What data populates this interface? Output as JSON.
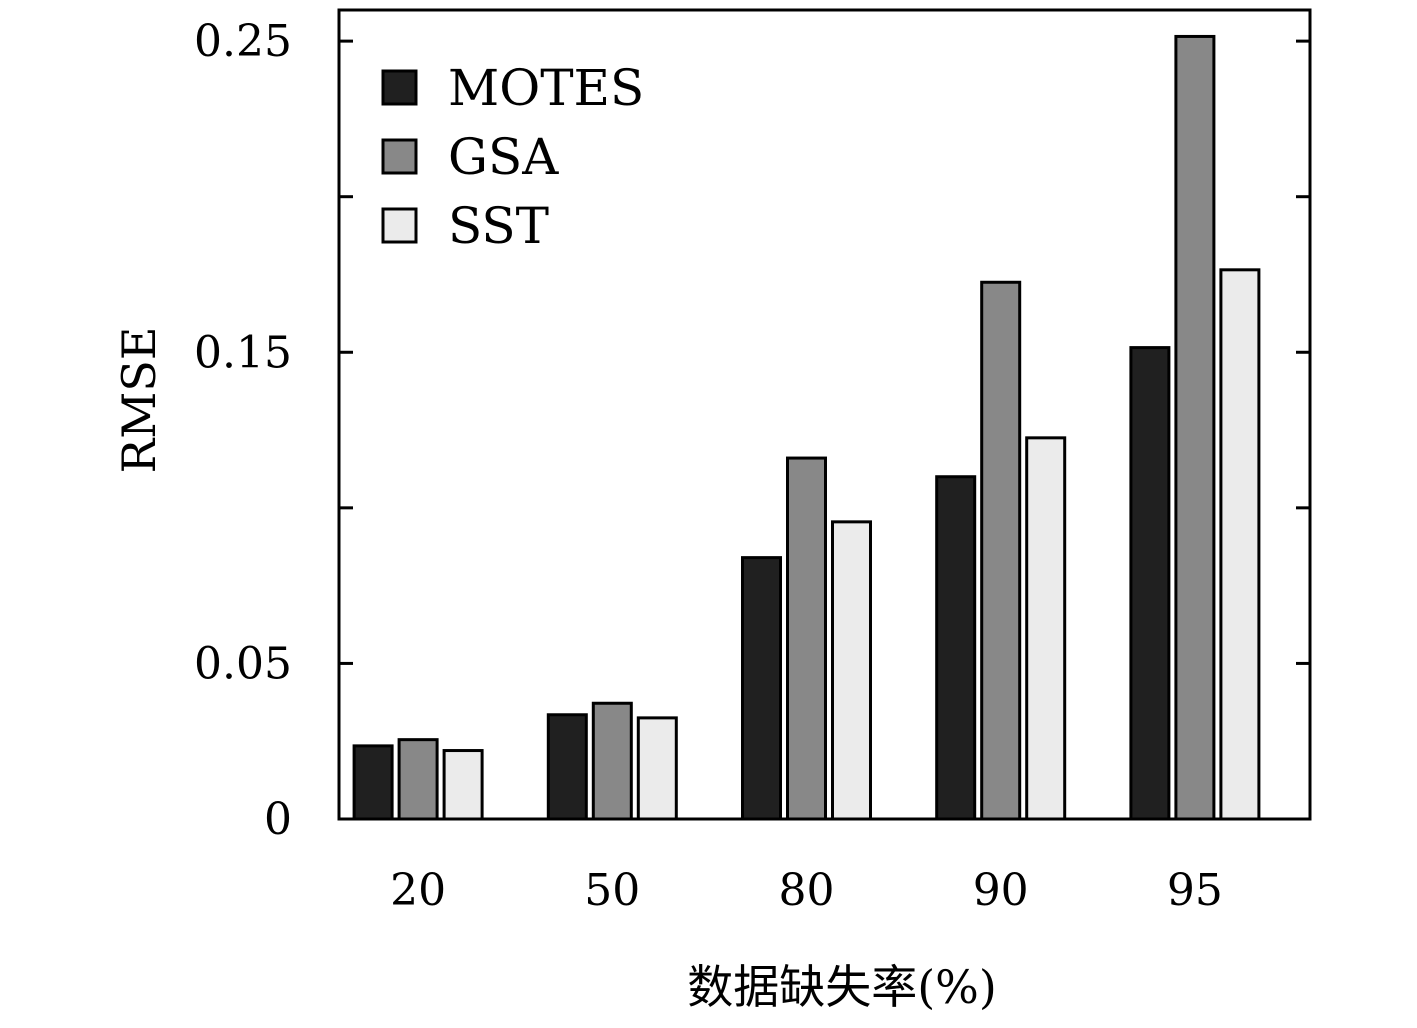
{
  "chart_data": {
    "type": "bar",
    "xlabel": "数据缺失率(%)",
    "ylabel": "RMSE",
    "categories": [
      "20",
      "50",
      "80",
      "90",
      "95"
    ],
    "series": [
      {
        "name": "MOTES",
        "values": [
          0.0235,
          0.0335,
          0.084,
          0.11,
          0.1515
        ],
        "color": "#202020"
      },
      {
        "name": "GSA",
        "values": [
          0.0255,
          0.0372,
          0.116,
          0.1725,
          0.2515
        ],
        "color": "#888888"
      },
      {
        "name": "SST",
        "values": [
          0.022,
          0.0325,
          0.0955,
          0.1225,
          0.1765
        ],
        "color": "#ebebeb"
      }
    ],
    "yticks": [
      {
        "value": 0,
        "label": "0"
      },
      {
        "value": 0.05,
        "label": "0.05"
      },
      {
        "value": 0.1,
        "label": ""
      },
      {
        "value": 0.15,
        "label": "0.15"
      },
      {
        "value": 0.2,
        "label": ""
      },
      {
        "value": 0.25,
        "label": "0.25"
      }
    ],
    "ylim": [
      0,
      0.26
    ],
    "grid": false,
    "legend_position": "top-left"
  }
}
